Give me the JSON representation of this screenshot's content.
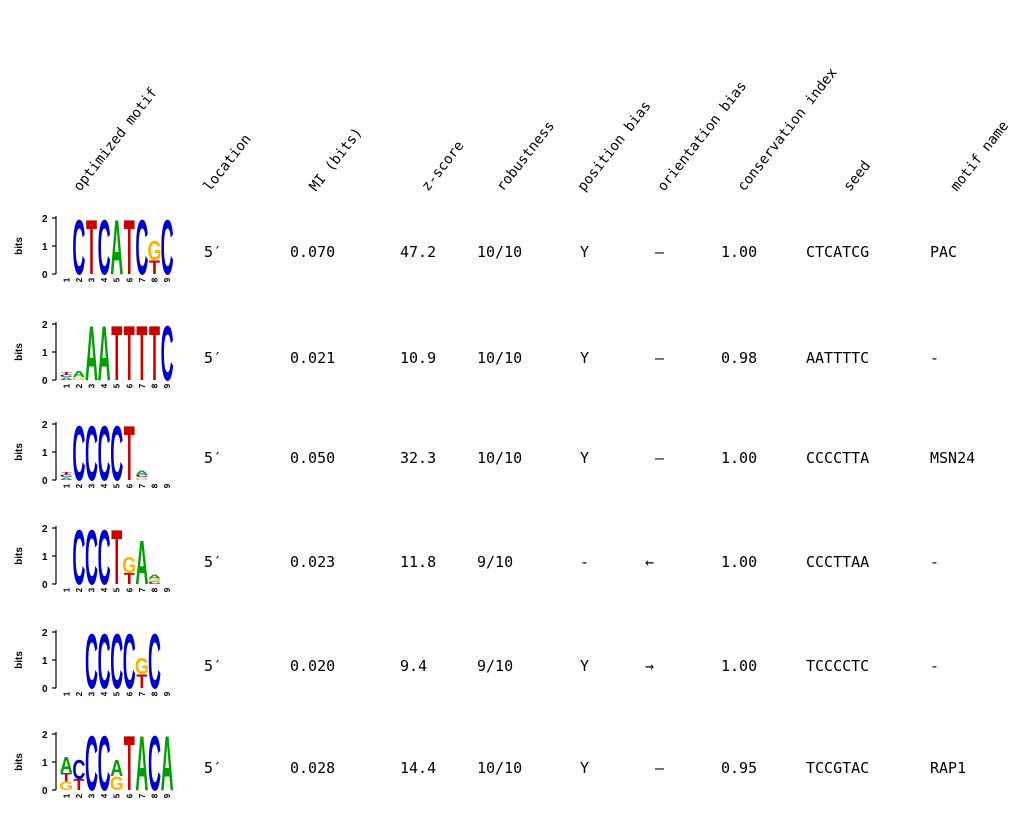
{
  "colors": {
    "A": "#00a000",
    "C": "#0000cc",
    "G": "#ffb300",
    "T": "#cc0000"
  },
  "headers": [
    "optimized motif",
    "location",
    "MI (bits)",
    "z-score",
    "robustness",
    "position bias",
    "orientation bias",
    "conservation index",
    "seed",
    "motif name"
  ],
  "logo_axis": {
    "label": "bits",
    "ticks": [
      "0",
      "1",
      "2"
    ],
    "positions": [
      "1",
      "2",
      "3",
      "4",
      "5",
      "6",
      "7",
      "8",
      "9"
    ]
  },
  "rows": [
    {
      "location": "5′",
      "mi": "0.070",
      "zscore": "47.2",
      "robustness": "10/10",
      "position_bias": "Y",
      "orientation_bias": "–",
      "orientation_symbol": "",
      "conservation": "1.00",
      "seed": "CTCATCG",
      "motif_name": "PAC",
      "logo": [
        [],
        [
          [
            "C",
            2.0
          ]
        ],
        [
          [
            "T",
            2.0
          ]
        ],
        [
          [
            "C",
            2.0
          ]
        ],
        [
          [
            "A",
            2.0
          ]
        ],
        [
          [
            "T",
            2.0
          ]
        ],
        [
          [
            "C",
            2.0
          ]
        ],
        [
          [
            "G",
            0.7
          ],
          [
            "T",
            0.5
          ]
        ],
        [
          [
            "C",
            2.0
          ]
        ]
      ]
    },
    {
      "location": "5′",
      "mi": "0.021",
      "zscore": "10.9",
      "robustness": "10/10",
      "position_bias": "Y",
      "orientation_bias": "–",
      "orientation_symbol": "",
      "conservation": "0.98",
      "seed": "AATTTTC",
      "motif_name": "-",
      "logo": [
        [
          [
            "A",
            0.1
          ],
          [
            "C",
            0.1
          ],
          [
            "T",
            0.1
          ]
        ],
        [
          [
            "A",
            0.2
          ],
          [
            "G",
            0.1
          ]
        ],
        [
          [
            "A",
            2.0
          ]
        ],
        [
          [
            "A",
            2.0
          ]
        ],
        [
          [
            "T",
            2.0
          ]
        ],
        [
          [
            "T",
            2.0
          ]
        ],
        [
          [
            "T",
            2.0
          ]
        ],
        [
          [
            "T",
            2.0
          ]
        ],
        [
          [
            "C",
            2.0
          ]
        ]
      ]
    },
    {
      "location": "5′",
      "mi": "0.050",
      "zscore": "32.3",
      "robustness": "10/10",
      "position_bias": "Y",
      "orientation_bias": "–",
      "orientation_symbol": "",
      "conservation": "1.00",
      "seed": "CCCCTTA",
      "motif_name": "MSN24",
      "logo": [
        [
          [
            "A",
            0.1
          ],
          [
            "C",
            0.1
          ],
          [
            "T",
            0.1
          ]
        ],
        [
          [
            "C",
            2.0
          ]
        ],
        [
          [
            "C",
            2.0
          ]
        ],
        [
          [
            "C",
            2.0
          ]
        ],
        [
          [
            "C",
            2.0
          ]
        ],
        [
          [
            "T",
            2.0
          ]
        ],
        [
          [
            "A",
            0.15
          ],
          [
            "G",
            0.1
          ],
          [
            "C",
            0.1
          ]
        ],
        [],
        []
      ]
    },
    {
      "location": "5′",
      "mi": "0.023",
      "zscore": "11.8",
      "robustness": "9/10",
      "position_bias": "-",
      "orientation_bias": "",
      "orientation_symbol": "←",
      "conservation": "1.00",
      "seed": "CCCTTAA",
      "motif_name": "-",
      "logo": [
        [],
        [
          [
            "C",
            2.0
          ]
        ],
        [
          [
            "C",
            2.0
          ]
        ],
        [
          [
            "C",
            2.0
          ]
        ],
        [
          [
            "T",
            2.0
          ]
        ],
        [
          [
            "G",
            0.6
          ],
          [
            "T",
            0.4
          ]
        ],
        [
          [
            "A",
            1.6
          ]
        ],
        [
          [
            "A",
            0.15
          ],
          [
            "C",
            0.1
          ],
          [
            "G",
            0.1
          ]
        ],
        []
      ]
    },
    {
      "location": "5′",
      "mi": "0.020",
      "zscore": "9.4",
      "robustness": "9/10",
      "position_bias": "Y",
      "orientation_bias": "",
      "orientation_symbol": "→",
      "conservation": "1.00",
      "seed": "TCCCCTC",
      "motif_name": "-",
      "logo": [
        [],
        [],
        [
          [
            "C",
            2.0
          ]
        ],
        [
          [
            "C",
            2.0
          ]
        ],
        [
          [
            "C",
            2.0
          ]
        ],
        [
          [
            "C",
            2.0
          ]
        ],
        [
          [
            "G",
            0.6
          ],
          [
            "T",
            0.5
          ]
        ],
        [
          [
            "C",
            2.0
          ]
        ],
        []
      ]
    },
    {
      "location": "5′",
      "mi": "0.028",
      "zscore": "14.4",
      "robustness": "10/10",
      "position_bias": "Y",
      "orientation_bias": "–",
      "orientation_symbol": "",
      "conservation": "0.95",
      "seed": "TCCGTAC",
      "motif_name": "RAP1",
      "logo": [
        [
          [
            "A",
            0.6
          ],
          [
            "G",
            0.3
          ],
          [
            "T",
            0.3
          ]
        ],
        [
          [
            "C",
            0.7
          ],
          [
            "T",
            0.4
          ]
        ],
        [
          [
            "C",
            2.0
          ]
        ],
        [
          [
            "C",
            2.0
          ]
        ],
        [
          [
            "A",
            0.6
          ],
          [
            "G",
            0.5
          ]
        ],
        [
          [
            "T",
            2.0
          ]
        ],
        [
          [
            "A",
            2.0
          ]
        ],
        [
          [
            "C",
            2.0
          ]
        ],
        [
          [
            "A",
            2.0
          ]
        ]
      ]
    }
  ]
}
